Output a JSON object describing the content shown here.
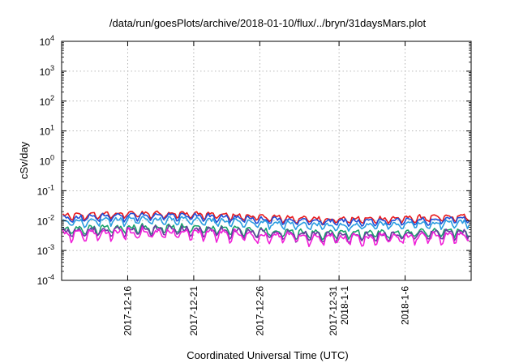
{
  "chart_data": {
    "type": "line",
    "title": "/data/run/goesPlots/archive/2018-01-10/flux/../bryn/31daysMars.plot",
    "xlabel": "Coordinated Universal Time (UTC)",
    "ylabel": "cSv/day",
    "y_scale": "log",
    "ylim": [
      0.0001,
      10000
    ],
    "xlim": [
      "2017-12-11",
      "2018-01-11"
    ],
    "grid": true,
    "y_ticks": [
      {
        "base": "10",
        "exp": "4"
      },
      {
        "base": "10",
        "exp": "3"
      },
      {
        "base": "10",
        "exp": "2"
      },
      {
        "base": "10",
        "exp": "1"
      },
      {
        "base": "10",
        "exp": "0"
      },
      {
        "base": "10",
        "exp": "-1"
      },
      {
        "base": "10",
        "exp": "-2"
      },
      {
        "base": "10",
        "exp": "-3"
      },
      {
        "base": "10",
        "exp": "-4"
      }
    ],
    "x_ticks": [
      {
        "date": "2017-12-16",
        "labels": [
          "2017-12-16"
        ]
      },
      {
        "date": "2017-12-21",
        "labels": [
          "2017-12-21"
        ]
      },
      {
        "date": "2017-12-26",
        "labels": [
          "2017-12-26"
        ]
      },
      {
        "date": "2018-01-01",
        "labels": [
          "2017-12-31",
          "2018-1-1"
        ]
      },
      {
        "date": "2018-01-06",
        "labels": [
          "2018-1-6"
        ]
      }
    ],
    "series": [
      {
        "color": "#e8191c",
        "level": 0.0125,
        "amp": 0.18
      },
      {
        "color": "#1f4fd8",
        "level": 0.0105,
        "amp": 0.18
      },
      {
        "color": "#2a9de0",
        "level": 0.0078,
        "amp": 0.2
      },
      {
        "color": "#1aa36b",
        "level": 0.0042,
        "amp": 0.22
      },
      {
        "color": "#6a3aa0",
        "level": 0.0036,
        "amp": 0.24
      },
      {
        "color": "#f020d8",
        "level": 0.0029,
        "amp": 0.28
      }
    ]
  }
}
